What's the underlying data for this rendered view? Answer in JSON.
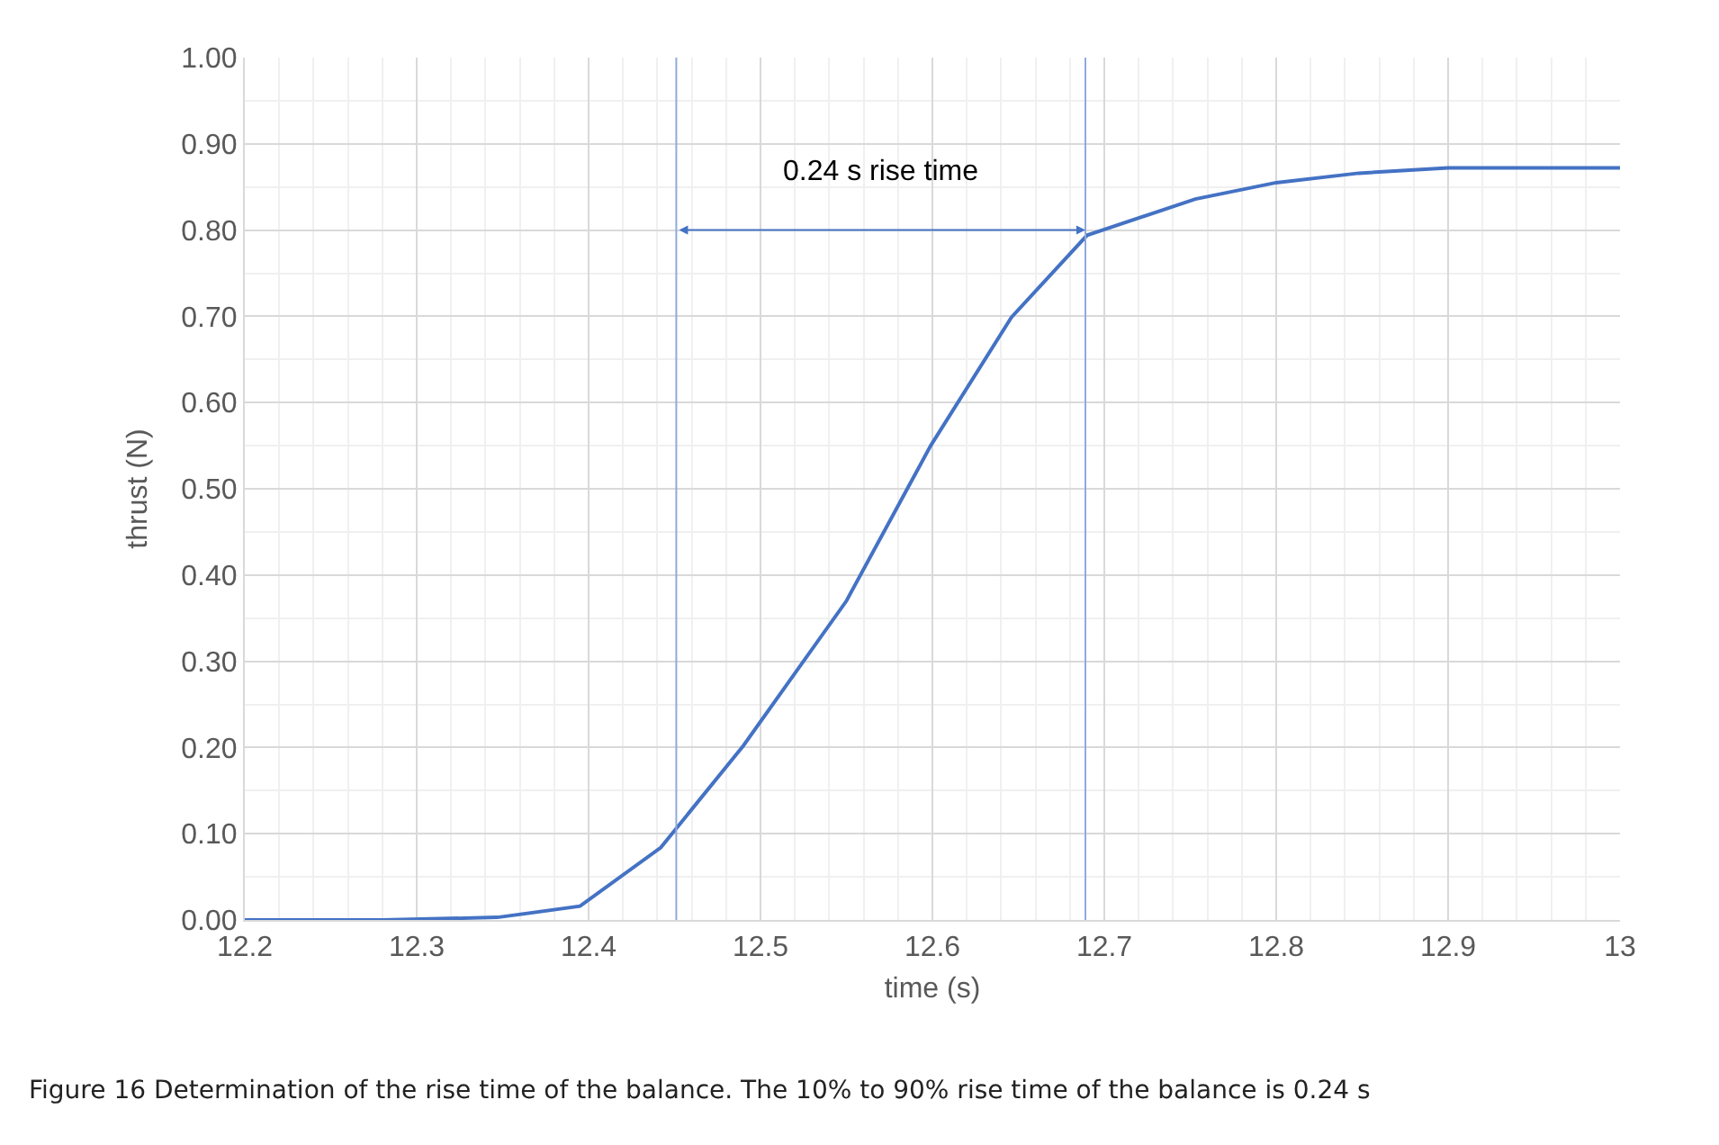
{
  "chart_data": {
    "type": "line",
    "xlabel": "time (s)",
    "ylabel": "thrust (N)",
    "x": [
      12.2,
      12.28,
      12.347,
      12.395,
      12.442,
      12.49,
      12.55,
      12.599,
      12.646,
      12.69,
      12.753,
      12.8,
      12.848,
      12.9,
      13
    ],
    "series": [
      {
        "color": "#4472c4",
        "values": [
          0,
          0,
          0.003,
          0.016,
          0.084,
          0.202,
          0.37,
          0.55,
          0.699,
          0.794,
          0.836,
          0.855,
          0.866,
          0.872,
          0.872
        ]
      }
    ],
    "xlim": [
      12.2,
      13
    ],
    "xticks": [
      12.2,
      12.3,
      12.4,
      12.5,
      12.6,
      12.7,
      12.8,
      12.9,
      13
    ],
    "ylim": [
      0,
      1
    ],
    "yticks": [
      {
        "value": 0,
        "label": "0.00"
      },
      {
        "value": 0.1,
        "label": "0.10"
      },
      {
        "value": 0.2,
        "label": "0.20"
      },
      {
        "value": 0.3,
        "label": "0.30"
      },
      {
        "value": 0.4,
        "label": "0.40"
      },
      {
        "value": 0.5,
        "label": "0.50"
      },
      {
        "value": 0.6,
        "label": "0.60"
      },
      {
        "value": 0.7,
        "label": "0.70"
      },
      {
        "value": 0.8,
        "label": "0.80"
      },
      {
        "value": 0.9,
        "label": "0.90"
      },
      {
        "value": 1,
        "label": "1.00"
      }
    ],
    "grid": true,
    "marker": "none",
    "line_style": "solid",
    "ref_lines": [
      {
        "axis": "x",
        "value": 12.451,
        "color": "#8faadc"
      },
      {
        "axis": "x",
        "value": 12.689,
        "color": "#8faadc"
      }
    ],
    "annotations": [
      "0.24 s rise time",
      "Figure 16  Determination of the rise time of the balance. The 10% to 90% rise time of the balance is 0.24 s"
    ]
  }
}
